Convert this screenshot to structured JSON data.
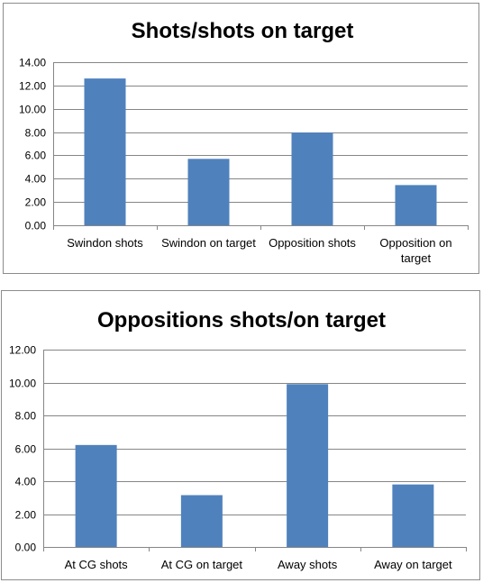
{
  "colors": {
    "bar": "#4F81BD",
    "grid": "#868686",
    "frame": "#8C8C8C"
  },
  "chart_data": [
    {
      "type": "bar",
      "title": "Shots/shots on target",
      "xlabel": "",
      "ylabel": "",
      "categories": [
        "Swindon shots",
        "Swindon on target",
        "Opposition shots",
        "Opposition on target"
      ],
      "category_lines": [
        [
          "Swindon shots"
        ],
        [
          "Swindon on target"
        ],
        [
          "Opposition shots"
        ],
        [
          "Opposition on",
          "target"
        ]
      ],
      "values": [
        12.6,
        5.7,
        7.95,
        3.45
      ],
      "ylim": [
        0,
        14
      ],
      "yticks": [
        "0.00",
        "2.00",
        "4.00",
        "6.00",
        "8.00",
        "10.00",
        "12.00",
        "14.00"
      ],
      "grid": true,
      "legend": "none"
    },
    {
      "type": "bar",
      "title": "Oppositions shots/on target",
      "xlabel": "",
      "ylabel": "",
      "categories": [
        "At CG shots",
        "At CG on target",
        "Away shots",
        "Away on target"
      ],
      "category_lines": [
        [
          "At CG shots"
        ],
        [
          "At CG on target"
        ],
        [
          "Away shots"
        ],
        [
          "Away on target"
        ]
      ],
      "values": [
        6.2,
        3.15,
        9.9,
        3.8
      ],
      "ylim": [
        0,
        12
      ],
      "yticks": [
        "0.00",
        "2.00",
        "4.00",
        "6.00",
        "8.00",
        "10.00",
        "12.00"
      ],
      "grid": true,
      "legend": "none"
    }
  ]
}
